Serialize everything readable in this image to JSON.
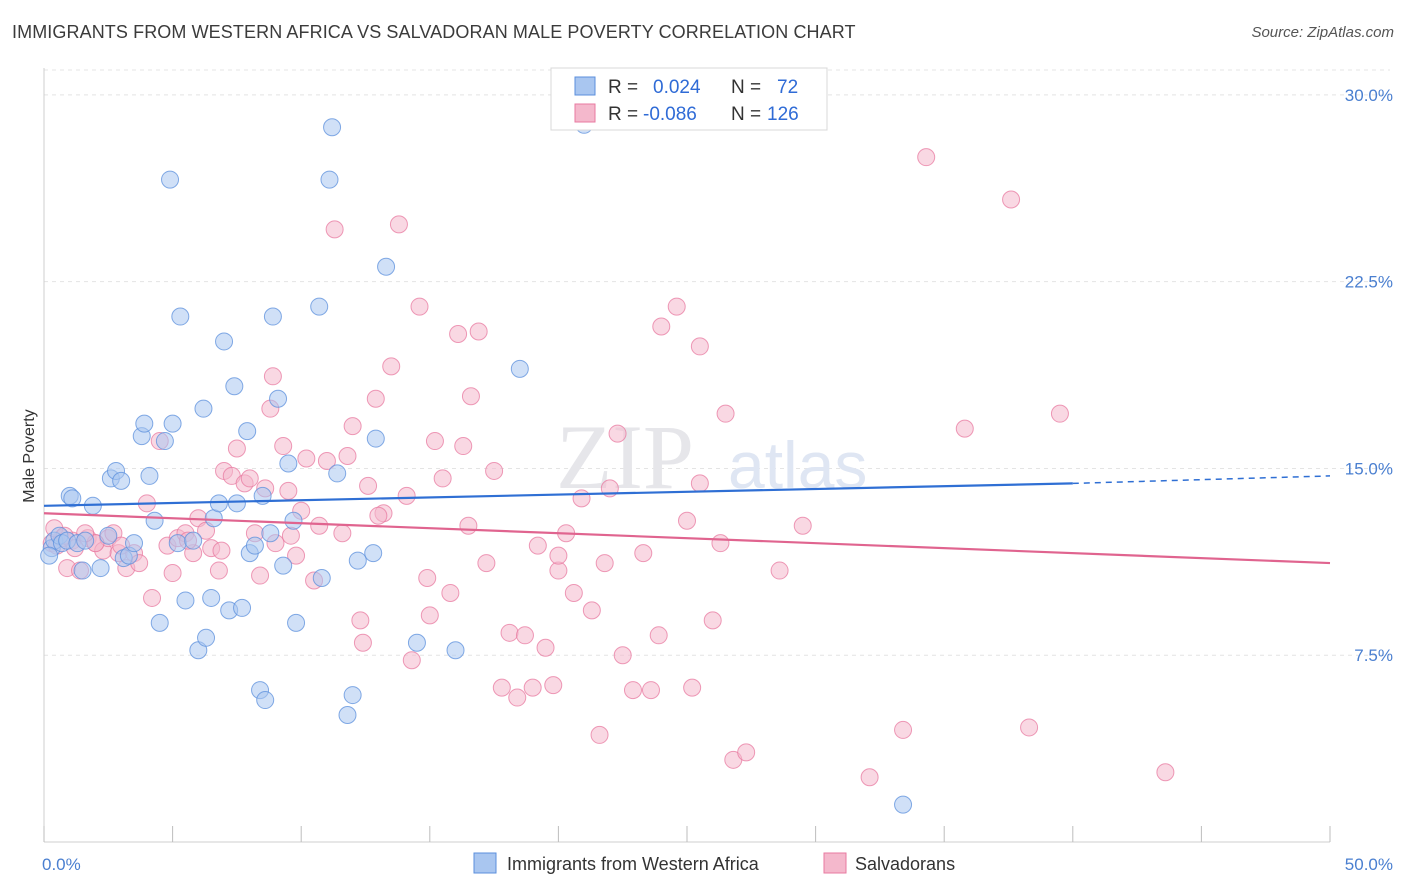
{
  "title": "IMMIGRANTS FROM WESTERN AFRICA VS SALVADORAN MALE POVERTY CORRELATION CHART",
  "source": "Source: ZipAtlas.com",
  "watermark": {
    "zip": "ZIP",
    "atlas": "atlas"
  },
  "legend": {
    "r_label": "R =",
    "n_label": "N =",
    "rows": [
      {
        "r": "0.024",
        "n": "72"
      },
      {
        "r": "-0.086",
        "n": "126"
      }
    ]
  },
  "chart_data": {
    "type": "scatter",
    "title": "IMMIGRANTS FROM WESTERN AFRICA VS SALVADORAN MALE POVERTY CORRELATION CHART",
    "xlabel": "",
    "ylabel": "Male Poverty",
    "xlim": [
      0,
      50
    ],
    "ylim": [
      0,
      31
    ],
    "x_tick_labels": [
      "0.0%",
      "50.0%"
    ],
    "y_ticks": [
      7.5,
      15.0,
      22.5,
      30.0
    ],
    "y_tick_labels": [
      "7.5%",
      "15.0%",
      "22.5%",
      "30.0%"
    ],
    "grid": true,
    "legend_position": "top-center",
    "colors": {
      "blue": "#5b8fdc",
      "pink": "#e87aa0",
      "blue_fill": "#a9c6f0",
      "pink_fill": "#f4b8cc"
    },
    "series": [
      {
        "name": "Immigrants from Western Africa",
        "color": "#5b8fdc",
        "trend": {
          "x": [
            0,
            40
          ],
          "y": [
            13.5,
            14.4
          ],
          "dashed_to": [
            50,
            14.7
          ]
        },
        "points": [
          [
            0.3,
            11.8
          ],
          [
            0.4,
            12.1
          ],
          [
            0.6,
            12.3
          ],
          [
            0.7,
            12.0
          ],
          [
            0.9,
            12.1
          ],
          [
            1.0,
            13.9
          ],
          [
            1.1,
            13.8
          ],
          [
            1.3,
            12.0
          ],
          [
            1.5,
            10.9
          ],
          [
            1.6,
            12.1
          ],
          [
            1.9,
            13.5
          ],
          [
            2.2,
            11.0
          ],
          [
            2.5,
            12.3
          ],
          [
            2.6,
            14.6
          ],
          [
            2.8,
            14.9
          ],
          [
            3.0,
            14.5
          ],
          [
            3.1,
            11.4
          ],
          [
            3.3,
            11.5
          ],
          [
            3.5,
            12.0
          ],
          [
            3.8,
            16.3
          ],
          [
            3.9,
            16.8
          ],
          [
            4.1,
            14.7
          ],
          [
            4.3,
            12.9
          ],
          [
            4.5,
            8.8
          ],
          [
            4.7,
            16.1
          ],
          [
            4.9,
            26.6
          ],
          [
            5.0,
            16.8
          ],
          [
            5.2,
            12.0
          ],
          [
            5.3,
            21.1
          ],
          [
            5.5,
            9.7
          ],
          [
            5.8,
            12.1
          ],
          [
            6.0,
            7.7
          ],
          [
            6.2,
            17.4
          ],
          [
            6.3,
            8.2
          ],
          [
            6.5,
            9.8
          ],
          [
            6.6,
            13.0
          ],
          [
            6.8,
            13.6
          ],
          [
            7.0,
            20.1
          ],
          [
            7.2,
            9.3
          ],
          [
            7.4,
            18.3
          ],
          [
            7.5,
            13.6
          ],
          [
            7.7,
            9.4
          ],
          [
            7.9,
            16.5
          ],
          [
            8.0,
            11.6
          ],
          [
            8.2,
            11.9
          ],
          [
            8.4,
            6.1
          ],
          [
            8.5,
            13.9
          ],
          [
            8.6,
            5.7
          ],
          [
            8.8,
            12.4
          ],
          [
            8.9,
            21.1
          ],
          [
            9.1,
            17.8
          ],
          [
            9.3,
            11.1
          ],
          [
            9.5,
            15.2
          ],
          [
            9.7,
            12.9
          ],
          [
            9.8,
            8.8
          ],
          [
            10.7,
            21.5
          ],
          [
            10.8,
            10.6
          ],
          [
            11.1,
            26.6
          ],
          [
            11.2,
            28.7
          ],
          [
            11.4,
            14.8
          ],
          [
            11.8,
            5.1
          ],
          [
            12.0,
            5.9
          ],
          [
            12.2,
            11.3
          ],
          [
            12.8,
            11.6
          ],
          [
            12.9,
            16.2
          ],
          [
            13.3,
            23.1
          ],
          [
            14.5,
            8.0
          ],
          [
            16.0,
            7.7
          ],
          [
            18.5,
            19.0
          ],
          [
            21.0,
            28.8
          ],
          [
            33.4,
            1.5
          ],
          [
            0.2,
            11.5
          ]
        ]
      },
      {
        "name": "Salvadorans",
        "color": "#e87aa0",
        "trend": {
          "x": [
            0,
            50
          ],
          "y": [
            13.2,
            11.2
          ]
        },
        "points": [
          [
            0.3,
            12.0
          ],
          [
            0.5,
            11.9
          ],
          [
            0.7,
            12.2
          ],
          [
            0.9,
            11.0
          ],
          [
            1.1,
            12.1
          ],
          [
            1.4,
            10.9
          ],
          [
            1.7,
            12.2
          ],
          [
            2.0,
            12.0
          ],
          [
            2.3,
            11.7
          ],
          [
            2.5,
            12.2
          ],
          [
            2.7,
            12.4
          ],
          [
            2.9,
            11.6
          ],
          [
            3.2,
            11.0
          ],
          [
            3.5,
            11.6
          ],
          [
            3.7,
            11.2
          ],
          [
            4.0,
            13.6
          ],
          [
            4.2,
            9.8
          ],
          [
            4.5,
            16.1
          ],
          [
            4.8,
            11.9
          ],
          [
            5.0,
            10.8
          ],
          [
            5.2,
            12.2
          ],
          [
            5.5,
            12.4
          ],
          [
            5.8,
            11.6
          ],
          [
            6.0,
            13.0
          ],
          [
            6.3,
            12.5
          ],
          [
            6.5,
            11.8
          ],
          [
            6.8,
            10.9
          ],
          [
            7.0,
            14.9
          ],
          [
            7.3,
            14.7
          ],
          [
            7.5,
            15.8
          ],
          [
            7.8,
            14.4
          ],
          [
            8.0,
            14.6
          ],
          [
            8.2,
            12.4
          ],
          [
            8.4,
            10.7
          ],
          [
            8.6,
            14.2
          ],
          [
            8.8,
            17.4
          ],
          [
            8.9,
            18.7
          ],
          [
            9.0,
            12.0
          ],
          [
            9.3,
            15.9
          ],
          [
            9.5,
            14.1
          ],
          [
            9.8,
            11.5
          ],
          [
            10.0,
            13.3
          ],
          [
            10.2,
            15.4
          ],
          [
            10.5,
            10.5
          ],
          [
            10.7,
            12.7
          ],
          [
            11.0,
            15.3
          ],
          [
            11.3,
            24.6
          ],
          [
            11.6,
            12.4
          ],
          [
            11.8,
            15.5
          ],
          [
            12.0,
            16.7
          ],
          [
            12.3,
            8.9
          ],
          [
            12.6,
            14.3
          ],
          [
            12.9,
            17.8
          ],
          [
            13.2,
            13.2
          ],
          [
            13.5,
            19.1
          ],
          [
            13.8,
            24.8
          ],
          [
            14.1,
            13.9
          ],
          [
            14.3,
            7.3
          ],
          [
            14.6,
            21.5
          ],
          [
            14.9,
            10.6
          ],
          [
            15.2,
            16.1
          ],
          [
            15.5,
            14.6
          ],
          [
            15.8,
            10.0
          ],
          [
            16.1,
            20.4
          ],
          [
            16.3,
            15.9
          ],
          [
            16.6,
            17.9
          ],
          [
            16.9,
            20.5
          ],
          [
            17.2,
            11.2
          ],
          [
            17.5,
            14.9
          ],
          [
            17.8,
            6.2
          ],
          [
            18.1,
            8.4
          ],
          [
            18.4,
            5.8
          ],
          [
            18.7,
            8.3
          ],
          [
            19.0,
            6.2
          ],
          [
            19.2,
            11.9
          ],
          [
            19.5,
            7.8
          ],
          [
            19.8,
            6.3
          ],
          [
            20.0,
            10.9
          ],
          [
            20.3,
            12.4
          ],
          [
            20.6,
            10.0
          ],
          [
            20.9,
            13.8
          ],
          [
            21.3,
            9.3
          ],
          [
            21.6,
            4.3
          ],
          [
            21.8,
            11.2
          ],
          [
            22.0,
            14.2
          ],
          [
            22.3,
            16.4
          ],
          [
            22.5,
            7.5
          ],
          [
            22.9,
            6.1
          ],
          [
            23.3,
            11.6
          ],
          [
            23.6,
            6.1
          ],
          [
            23.9,
            8.3
          ],
          [
            24.6,
            21.5
          ],
          [
            25.0,
            12.9
          ],
          [
            25.2,
            6.2
          ],
          [
            25.5,
            14.4
          ],
          [
            26.0,
            8.9
          ],
          [
            26.3,
            12.0
          ],
          [
            26.5,
            17.2
          ],
          [
            26.8,
            3.3
          ],
          [
            27.3,
            3.6
          ],
          [
            28.6,
            10.9
          ],
          [
            29.5,
            12.7
          ],
          [
            32.1,
            2.6
          ],
          [
            33.4,
            4.5
          ],
          [
            34.3,
            27.5
          ],
          [
            35.8,
            16.6
          ],
          [
            37.6,
            25.8
          ],
          [
            38.3,
            4.6
          ],
          [
            39.5,
            17.2
          ],
          [
            43.6,
            2.8
          ],
          [
            3.0,
            11.9
          ],
          [
            1.2,
            11.8
          ],
          [
            2.0,
            12.0
          ],
          [
            6.9,
            11.7
          ],
          [
            12.4,
            8.0
          ],
          [
            15.0,
            9.1
          ],
          [
            16.5,
            12.7
          ],
          [
            20.0,
            11.5
          ],
          [
            24.0,
            20.7
          ],
          [
            25.5,
            19.9
          ],
          [
            5.6,
            12.1
          ],
          [
            9.6,
            12.3
          ],
          [
            13.0,
            13.1
          ],
          [
            0.4,
            12.6
          ],
          [
            0.8,
            12.3
          ],
          [
            1.6,
            12.4
          ]
        ]
      }
    ]
  },
  "bottom_legend": [
    {
      "label": "Immigrants from Western Africa"
    },
    {
      "label": "Salvadorans"
    }
  ]
}
